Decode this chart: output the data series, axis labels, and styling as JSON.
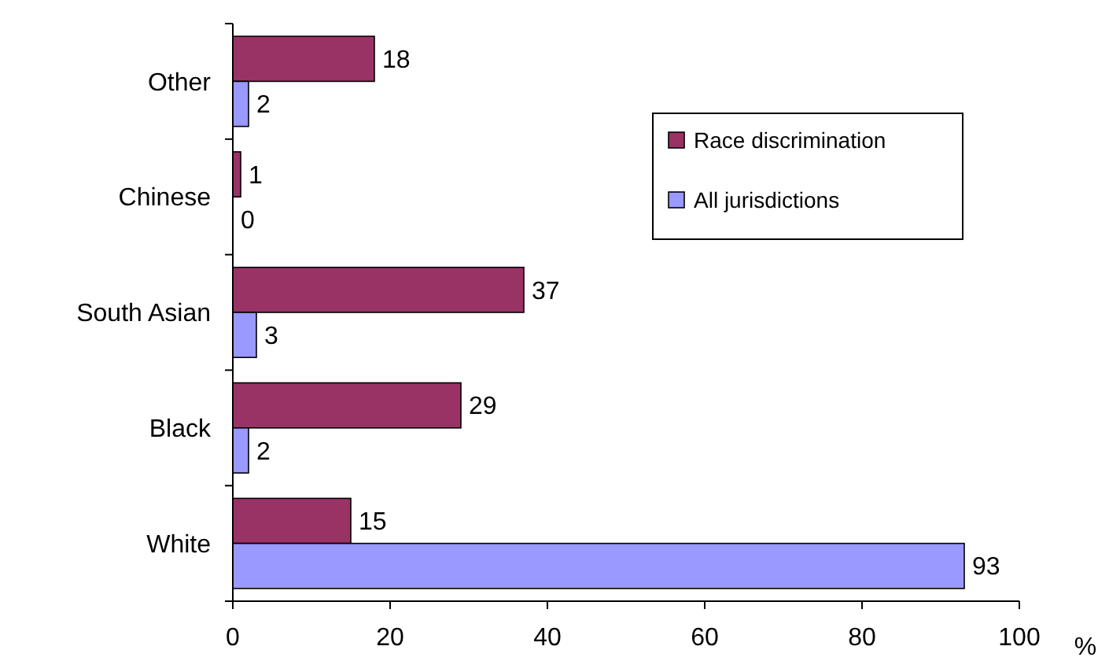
{
  "chart_data": {
    "type": "bar",
    "orientation": "horizontal",
    "categories": [
      "Other",
      "Chinese",
      "South Asian",
      "Black",
      "White"
    ],
    "series": [
      {
        "name": "Race discrimination",
        "color": "#993366",
        "values": [
          18,
          1,
          37,
          29,
          15
        ]
      },
      {
        "name": "All jurisdictions",
        "color": "#9999ff",
        "values": [
          2,
          0,
          3,
          2,
          93
        ]
      }
    ],
    "xlim": [
      0,
      100
    ],
    "xticks": [
      0,
      20,
      40,
      60,
      80,
      100
    ],
    "xlabel": "%",
    "data_labels": true,
    "legend": "top right",
    "grid": false
  }
}
